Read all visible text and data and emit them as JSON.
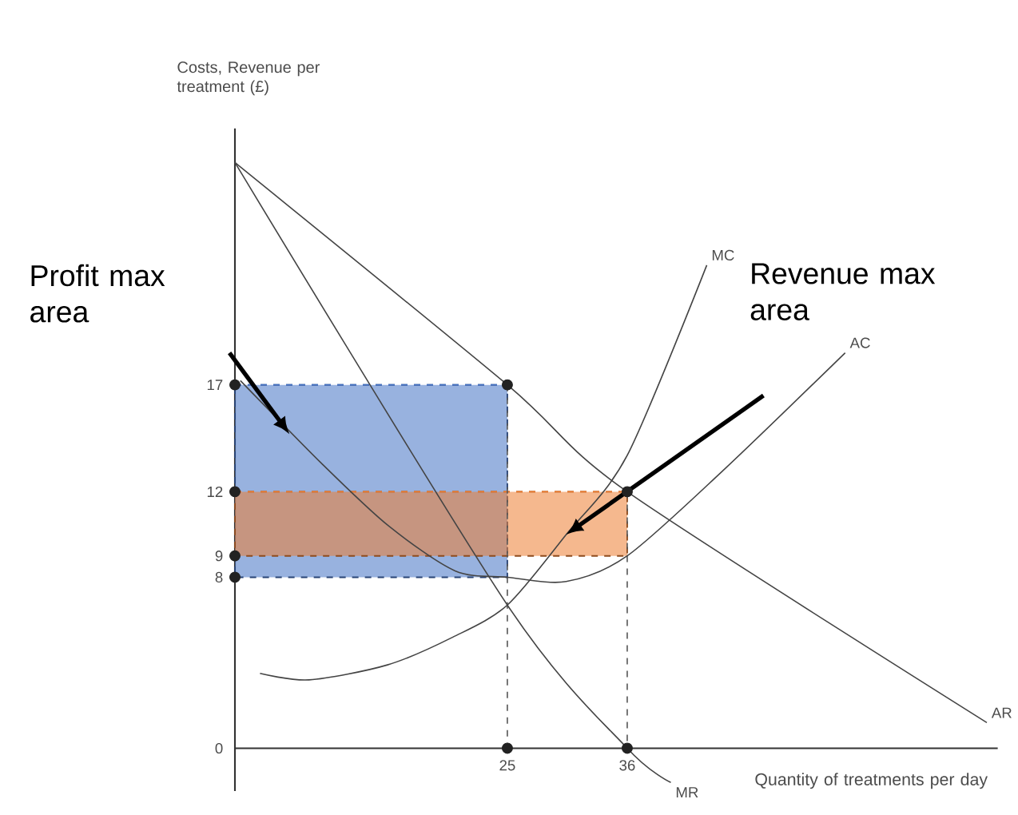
{
  "chart_data": {
    "type": "line",
    "xlabel": "Quantity of treatments per day",
    "ylabel": "Costs, Revenue per treatment (£)",
    "xlim": [
      0,
      70
    ],
    "ylim": [
      -2,
      29
    ],
    "xticks": [
      25,
      36
    ],
    "yticks": [
      0,
      8,
      9,
      12,
      17
    ],
    "grid": false,
    "series": [
      {
        "type": "line",
        "color": "#4472c4",
        "line_style": "dashed",
        "x": [
          0,
          25
        ],
        "values": [
          17,
          17
        ],
        "lower": [
          8,
          8
        ],
        "upper": [
          17,
          17
        ]
      },
      {
        "type": "line",
        "color": "#ed7d31",
        "line_style": "dashed",
        "x": [
          0,
          36
        ],
        "values": [
          12,
          12
        ],
        "lower": [
          9,
          9
        ],
        "upper": [
          12,
          12
        ]
      },
      {
        "color": "#555555",
        "line_style": "dashed",
        "x": [
          25,
          25
        ],
        "values": [
          17,
          0
        ]
      },
      {
        "color": "#555555",
        "line_style": "dashed",
        "x": [
          36,
          36
        ],
        "values": [
          12,
          0
        ]
      },
      {
        "name": "MC",
        "color": "#444444",
        "line_style": "solid",
        "x": [
          2.3,
          6.8,
          14,
          20,
          25,
          30.4,
          36,
          43.3
        ],
        "values": [
          3.5,
          3.2,
          3.9,
          5.2,
          6.7,
          10,
          13.7,
          22.6
        ]
      },
      {
        "name": "AC",
        "color": "#444444",
        "line_style": "solid",
        "x": [
          0.5,
          8,
          14.1,
          20.2,
          25,
          30.4,
          36,
          44.6,
          56
        ],
        "values": [
          17.2,
          13.3,
          10.4,
          8.3,
          8,
          7.8,
          9,
          12.9,
          18.5
        ]
      },
      {
        "name": "AR",
        "color": "#444444",
        "line_style": "solid",
        "x": [
          0,
          25,
          36,
          69
        ],
        "values": [
          27.4,
          17,
          12,
          1.2
        ]
      },
      {
        "name": "MR",
        "color": "#444444",
        "line_style": "solid",
        "x": [
          0,
          25,
          36,
          40
        ],
        "values": [
          27.4,
          6.7,
          0,
          -1.6
        ]
      },
      {
        "type": "scatter",
        "color": "#222222",
        "marker": "circle",
        "x": [
          0,
          0,
          0,
          0,
          25,
          36,
          25,
          36
        ],
        "values": [
          8,
          9,
          12,
          17,
          17,
          12,
          0,
          0
        ]
      }
    ],
    "annotations": [
      "Profit max area",
      "Revenue max area"
    ]
  }
}
